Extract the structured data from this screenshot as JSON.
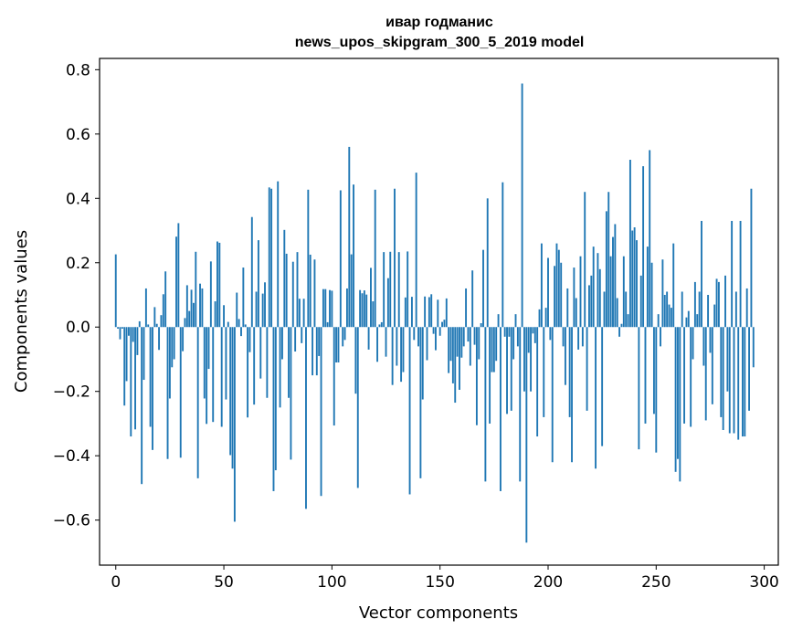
{
  "colors": {
    "bar": "#1f77b4",
    "axis": "#000000",
    "background": "#ffffff"
  },
  "chart_data": {
    "type": "bar",
    "title_line1": "ивар годманис",
    "title_line2": "news_upos_skipgram_300_5_2019 model",
    "xlabel": "Vector components",
    "ylabel": "Components values",
    "xlim": [
      -7.5,
      306.5
    ],
    "ylim": [
      -0.74,
      0.835
    ],
    "xticks": [
      0,
      50,
      100,
      150,
      200,
      250,
      300
    ],
    "xtick_labels": [
      "0",
      "50",
      "100",
      "150",
      "200",
      "250",
      "300"
    ],
    "yticks": [
      -0.6,
      -0.4,
      -0.2,
      0.0,
      0.2,
      0.4,
      0.6,
      0.8
    ],
    "ytick_labels": [
      "−0.6",
      "−0.4",
      "−0.2",
      "0.0",
      "0.2",
      "0.4",
      "0.6",
      "0.8"
    ],
    "categories_start": 0,
    "values": [
      0.226,
      -0.005,
      -0.038,
      -0.005,
      -0.244,
      -0.168,
      -0.027,
      -0.34,
      -0.046,
      -0.318,
      -0.087,
      0.018,
      -0.488,
      -0.164,
      0.12,
      0.008,
      -0.31,
      -0.382,
      0.062,
      0.01,
      -0.071,
      0.037,
      0.102,
      0.173,
      -0.41,
      -0.222,
      -0.125,
      -0.1,
      0.281,
      0.323,
      -0.406,
      -0.075,
      0.028,
      0.13,
      0.05,
      0.116,
      0.075,
      0.234,
      -0.47,
      0.135,
      0.12,
      -0.222,
      -0.301,
      -0.13,
      0.204,
      -0.295,
      0.08,
      0.266,
      0.262,
      -0.31,
      0.068,
      -0.225,
      0.016,
      -0.398,
      -0.44,
      -0.605,
      0.107,
      0.025,
      -0.028,
      0.185,
      0.008,
      -0.281,
      -0.078,
      0.342,
      -0.241,
      0.11,
      0.27,
      -0.16,
      0.104,
      0.139,
      -0.22,
      0.434,
      0.43,
      -0.51,
      -0.445,
      0.453,
      -0.25,
      -0.1,
      0.302,
      0.228,
      -0.22,
      -0.412,
      0.203,
      -0.076,
      0.233,
      0.088,
      -0.05,
      0.088,
      -0.565,
      0.427,
      0.225,
      -0.15,
      0.21,
      -0.15,
      -0.09,
      -0.525,
      0.118,
      0.118,
      0.015,
      0.115,
      0.113,
      -0.306,
      -0.11,
      -0.11,
      0.425,
      -0.06,
      -0.04,
      0.12,
      0.56,
      0.226,
      0.443,
      -0.207,
      -0.5,
      0.115,
      0.105,
      0.114,
      0.101,
      -0.07,
      0.184,
      0.08,
      0.427,
      -0.108,
      0.008,
      0.015,
      0.233,
      -0.092,
      0.152,
      0.234,
      -0.18,
      0.43,
      -0.12,
      0.233,
      -0.17,
      -0.14,
      0.092,
      0.235,
      -0.52,
      0.094,
      -0.04,
      0.48,
      -0.06,
      -0.47,
      -0.225,
      0.095,
      -0.103,
      0.093,
      0.102,
      -0.021,
      -0.072,
      0.085,
      -0.027,
      0.016,
      0.023,
      0.089,
      -0.143,
      -0.105,
      -0.175,
      -0.235,
      -0.092,
      -0.195,
      -0.095,
      -0.06,
      0.12,
      -0.045,
      -0.12,
      0.176,
      -0.055,
      -0.305,
      -0.1,
      0.012,
      0.24,
      -0.48,
      0.4,
      -0.3,
      -0.14,
      -0.14,
      -0.105,
      0.04,
      -0.51,
      0.45,
      -0.03,
      -0.27,
      -0.03,
      -0.26,
      -0.1,
      0.04,
      -0.06,
      -0.48,
      0.757,
      -0.2,
      -0.67,
      -0.08,
      -0.2,
      -0.02,
      -0.05,
      -0.34,
      0.055,
      0.26,
      -0.28,
      0.06,
      0.215,
      -0.04,
      -0.42,
      0.19,
      0.26,
      0.24,
      0.2,
      -0.06,
      -0.18,
      0.12,
      -0.28,
      -0.42,
      0.185,
      0.09,
      -0.07,
      0.22,
      -0.06,
      0.42,
      -0.26,
      0.13,
      0.16,
      0.25,
      -0.44,
      0.23,
      0.18,
      -0.37,
      0.11,
      0.36,
      0.42,
      0.22,
      0.28,
      0.32,
      0.09,
      -0.03,
      0.01,
      0.22,
      0.11,
      0.04,
      0.52,
      0.3,
      0.31,
      0.27,
      -0.38,
      0.16,
      0.5,
      -0.3,
      0.25,
      0.55,
      0.2,
      -0.27,
      -0.39,
      0.04,
      -0.06,
      0.21,
      0.1,
      0.11,
      0.07,
      0.06,
      0.26,
      -0.45,
      -0.41,
      -0.48,
      0.11,
      -0.3,
      0.03,
      0.05,
      -0.31,
      -0.1,
      0.14,
      0.04,
      0.11,
      0.33,
      -0.12,
      -0.29,
      0.1,
      -0.08,
      -0.24,
      0.07,
      0.15,
      0.14,
      -0.28,
      -0.32,
      0.16,
      -0.2,
      -0.33,
      0.33,
      -0.33,
      0.11,
      -0.35,
      0.33,
      -0.34,
      -0.34,
      0.12,
      -0.26,
      0.43,
      -0.125
    ]
  }
}
